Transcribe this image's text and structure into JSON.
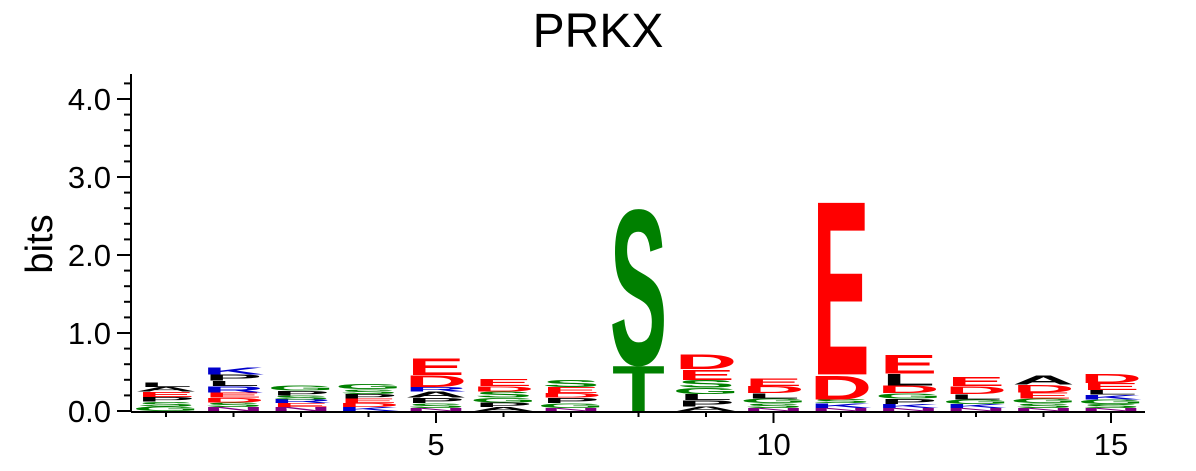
{
  "chart_data": {
    "type": "sequence-logo",
    "title": "PRKX",
    "ylabel": "bits",
    "xlabel": "",
    "ylim": [
      0,
      4.3
    ],
    "y_ticks": [
      {
        "value": 0,
        "label": "0.0"
      },
      {
        "value": 1,
        "label": "1.0"
      },
      {
        "value": 2,
        "label": "2.0"
      },
      {
        "value": 3,
        "label": "3.0"
      },
      {
        "value": 4,
        "label": "4.0"
      }
    ],
    "x_ticks": [
      {
        "value": 5,
        "label": "5"
      },
      {
        "value": 10,
        "label": "10"
      },
      {
        "value": 15,
        "label": "15"
      }
    ],
    "colors": {
      "acidic": "#ff0000",
      "polar": "#008000",
      "basic": "#0000cc",
      "hydrophobic": "#000000",
      "other": "#800080"
    },
    "positions": [
      {
        "pos": 1,
        "letters": [
          {
            "l": "G",
            "h": 0.06,
            "c": "#008000"
          },
          {
            "l": "S",
            "h": 0.06,
            "c": "#008000"
          },
          {
            "l": "P",
            "h": 0.06,
            "c": "#000000"
          },
          {
            "l": "E",
            "h": 0.07,
            "c": "#ff0000"
          },
          {
            "l": "A",
            "h": 0.06,
            "c": "#000000"
          },
          {
            "l": "L",
            "h": 0.06,
            "c": "#000000"
          }
        ]
      },
      {
        "pos": 2,
        "letters": [
          {
            "l": "N",
            "h": 0.05,
            "c": "#800080"
          },
          {
            "l": "S",
            "h": 0.06,
            "c": "#008000"
          },
          {
            "l": "D",
            "h": 0.06,
            "c": "#ff0000"
          },
          {
            "l": "E",
            "h": 0.07,
            "c": "#ff0000"
          },
          {
            "l": "R",
            "h": 0.08,
            "c": "#0000cc"
          },
          {
            "l": "L",
            "h": 0.07,
            "c": "#000000"
          },
          {
            "l": "P",
            "h": 0.08,
            "c": "#000000"
          },
          {
            "l": "K",
            "h": 0.09,
            "c": "#0000cc"
          }
        ]
      },
      {
        "pos": 3,
        "letters": [
          {
            "l": "N",
            "h": 0.05,
            "c": "#800080"
          },
          {
            "l": "E",
            "h": 0.05,
            "c": "#ff0000"
          },
          {
            "l": "R",
            "h": 0.05,
            "c": "#0000cc"
          },
          {
            "l": "S",
            "h": 0.05,
            "c": "#008000"
          },
          {
            "l": "P",
            "h": 0.06,
            "c": "#000000"
          },
          {
            "l": "G",
            "h": 0.07,
            "c": "#008000"
          }
        ]
      },
      {
        "pos": 4,
        "letters": [
          {
            "l": "K",
            "h": 0.05,
            "c": "#0000cc"
          },
          {
            "l": "D",
            "h": 0.05,
            "c": "#ff0000"
          },
          {
            "l": "E",
            "h": 0.06,
            "c": "#ff0000"
          },
          {
            "l": "P",
            "h": 0.06,
            "c": "#000000"
          },
          {
            "l": "S",
            "h": 0.06,
            "c": "#008000"
          },
          {
            "l": "G",
            "h": 0.07,
            "c": "#008000"
          }
        ]
      },
      {
        "pos": 5,
        "letters": [
          {
            "l": "N",
            "h": 0.04,
            "c": "#800080"
          },
          {
            "l": "S",
            "h": 0.06,
            "c": "#008000"
          },
          {
            "l": "P",
            "h": 0.07,
            "c": "#000000"
          },
          {
            "l": "A",
            "h": 0.08,
            "c": "#000000"
          },
          {
            "l": "R",
            "h": 0.06,
            "c": "#0000cc"
          },
          {
            "l": "D",
            "h": 0.15,
            "c": "#ff0000"
          },
          {
            "l": "E",
            "h": 0.22,
            "c": "#ff0000"
          }
        ]
      },
      {
        "pos": 6,
        "letters": [
          {
            "l": "A",
            "h": 0.05,
            "c": "#000000"
          },
          {
            "l": "P",
            "h": 0.06,
            "c": "#000000"
          },
          {
            "l": "G",
            "h": 0.06,
            "c": "#008000"
          },
          {
            "l": "S",
            "h": 0.08,
            "c": "#008000"
          },
          {
            "l": "D",
            "h": 0.07,
            "c": "#ff0000"
          },
          {
            "l": "E",
            "h": 0.09,
            "c": "#ff0000"
          }
        ]
      },
      {
        "pos": 7,
        "letters": [
          {
            "l": "N",
            "h": 0.04,
            "c": "#800080"
          },
          {
            "l": "G",
            "h": 0.06,
            "c": "#008000"
          },
          {
            "l": "P",
            "h": 0.07,
            "c": "#000000"
          },
          {
            "l": "D",
            "h": 0.06,
            "c": "#ff0000"
          },
          {
            "l": "E",
            "h": 0.08,
            "c": "#ff0000"
          },
          {
            "l": "S",
            "h": 0.09,
            "c": "#008000"
          }
        ]
      },
      {
        "pos": 8,
        "letters": [
          {
            "l": "T",
            "h": 0.6,
            "c": "#008000"
          },
          {
            "l": "S",
            "h": 2.05,
            "c": "#008000"
          }
        ]
      },
      {
        "pos": 9,
        "letters": [
          {
            "l": "A",
            "h": 0.06,
            "c": "#000000"
          },
          {
            "l": "P",
            "h": 0.08,
            "c": "#000000"
          },
          {
            "l": "L",
            "h": 0.08,
            "c": "#000000"
          },
          {
            "l": "G",
            "h": 0.08,
            "c": "#008000"
          },
          {
            "l": "S",
            "h": 0.1,
            "c": "#008000"
          },
          {
            "l": "E",
            "h": 0.14,
            "c": "#ff0000"
          },
          {
            "l": "D",
            "h": 0.2,
            "c": "#ff0000"
          }
        ]
      },
      {
        "pos": 10,
        "letters": [
          {
            "l": "N",
            "h": 0.04,
            "c": "#800080"
          },
          {
            "l": "S",
            "h": 0.06,
            "c": "#008000"
          },
          {
            "l": "G",
            "h": 0.06,
            "c": "#008000"
          },
          {
            "l": "L",
            "h": 0.07,
            "c": "#000000"
          },
          {
            "l": "D",
            "h": 0.09,
            "c": "#ff0000"
          },
          {
            "l": "E",
            "h": 0.1,
            "c": "#ff0000"
          }
        ]
      },
      {
        "pos": 11,
        "letters": [
          {
            "l": "N",
            "h": 0.04,
            "c": "#800080"
          },
          {
            "l": "K",
            "h": 0.06,
            "c": "#0000cc"
          },
          {
            "l": "S",
            "h": 0.05,
            "c": "#008000"
          },
          {
            "l": "D",
            "h": 0.32,
            "c": "#ff0000"
          },
          {
            "l": "E",
            "h": 2.3,
            "c": "#ff0000"
          }
        ]
      },
      {
        "pos": 12,
        "letters": [
          {
            "l": "N",
            "h": 0.04,
            "c": "#800080"
          },
          {
            "l": "K",
            "h": 0.05,
            "c": "#0000cc"
          },
          {
            "l": "P",
            "h": 0.07,
            "c": "#000000"
          },
          {
            "l": "G",
            "h": 0.07,
            "c": "#008000"
          },
          {
            "l": "D",
            "h": 0.1,
            "c": "#ff0000"
          },
          {
            "l": "L",
            "h": 0.15,
            "c": "#000000"
          },
          {
            "l": "E",
            "h": 0.25,
            "c": "#ff0000"
          }
        ]
      },
      {
        "pos": 13,
        "letters": [
          {
            "l": "N",
            "h": 0.04,
            "c": "#800080"
          },
          {
            "l": "K",
            "h": 0.05,
            "c": "#0000cc"
          },
          {
            "l": "G",
            "h": 0.06,
            "c": "#008000"
          },
          {
            "l": "L",
            "h": 0.07,
            "c": "#000000"
          },
          {
            "l": "D",
            "h": 0.1,
            "c": "#ff0000"
          },
          {
            "l": "E",
            "h": 0.12,
            "c": "#ff0000"
          }
        ]
      },
      {
        "pos": 14,
        "letters": [
          {
            "l": "N",
            "h": 0.04,
            "c": "#800080"
          },
          {
            "l": "S",
            "h": 0.06,
            "c": "#008000"
          },
          {
            "l": "G",
            "h": 0.06,
            "c": "#008000"
          },
          {
            "l": "E",
            "h": 0.08,
            "c": "#ff0000"
          },
          {
            "l": "D",
            "h": 0.1,
            "c": "#ff0000"
          },
          {
            "l": "A",
            "h": 0.12,
            "c": "#000000"
          }
        ]
      },
      {
        "pos": 15,
        "letters": [
          {
            "l": "N",
            "h": 0.04,
            "c": "#800080"
          },
          {
            "l": "S",
            "h": 0.05,
            "c": "#008000"
          },
          {
            "l": "G",
            "h": 0.06,
            "c": "#008000"
          },
          {
            "l": "K",
            "h": 0.06,
            "c": "#0000cc"
          },
          {
            "l": "L",
            "h": 0.06,
            "c": "#000000"
          },
          {
            "l": "E",
            "h": 0.09,
            "c": "#ff0000"
          },
          {
            "l": "D",
            "h": 0.12,
            "c": "#ff0000"
          }
        ]
      }
    ]
  }
}
